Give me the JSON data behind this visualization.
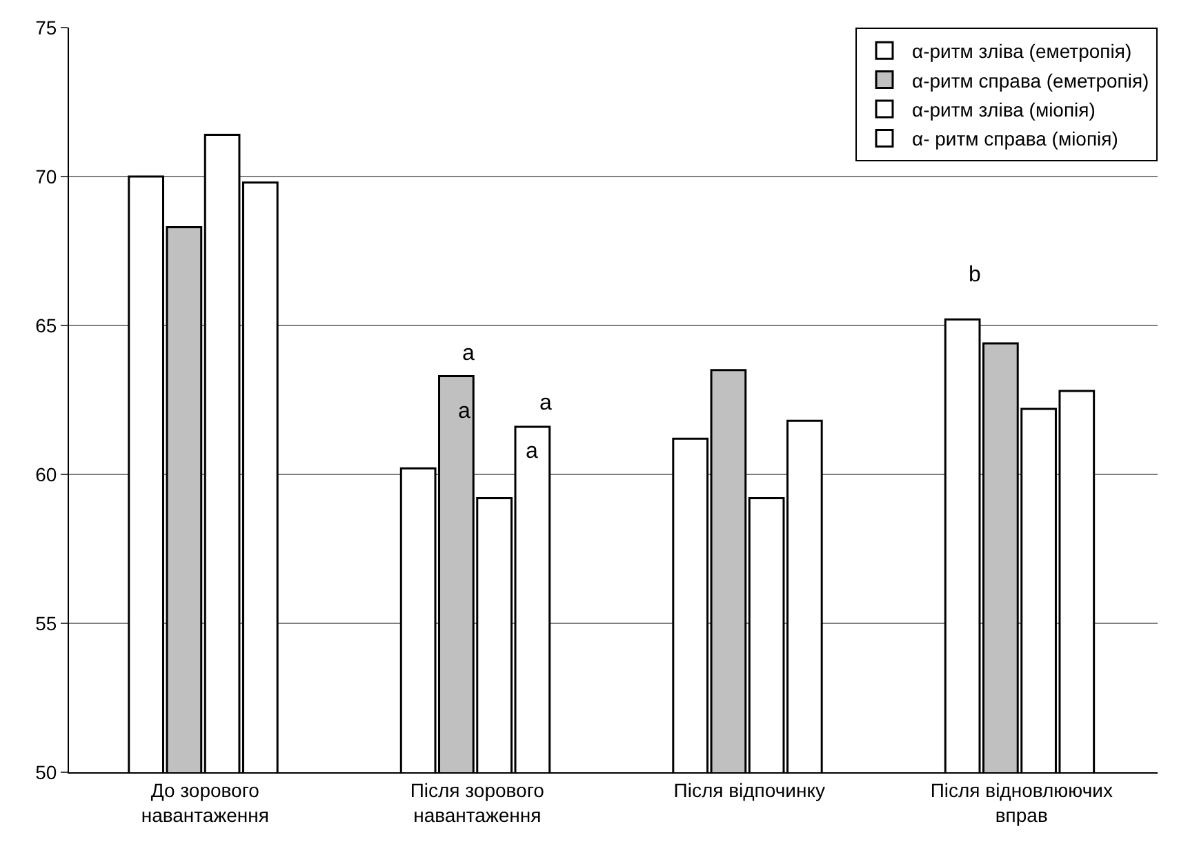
{
  "chart_data": {
    "type": "bar",
    "categories": [
      "До зорового навантаження",
      "Після зорового навантаження",
      "Після відпочинку",
      "Після відновлюючих вправ"
    ],
    "series": [
      {
        "name": "α-ритм зліва (еметропія)",
        "color": "#ffffff",
        "values": [
          70.0,
          60.2,
          61.2,
          65.2
        ]
      },
      {
        "name": "α-ритм справа (еметропія)",
        "color": "#c0c0c0",
        "values": [
          68.3,
          63.3,
          63.5,
          64.4
        ]
      },
      {
        "name": "α-ритм зліва (міопія)",
        "color": "#ffffff",
        "values": [
          71.4,
          59.2,
          59.2,
          62.2
        ]
      },
      {
        "name": "α- ритм справа (міопія)",
        "color": "#ffffff",
        "values": [
          69.8,
          61.6,
          61.8,
          62.8
        ]
      }
    ],
    "ylim": [
      50,
      75
    ],
    "yticks": [
      50,
      55,
      60,
      65,
      70,
      75
    ],
    "grid": "y",
    "legend": "top right",
    "annotations": [
      {
        "text": "a",
        "x": "Після зорового навантаження",
        "y": 63.3
      },
      "a",
      {
        "text": "a",
        "x": "Після зорового навантаження",
        "y": 61.6
      },
      "a",
      "b"
    ]
  }
}
